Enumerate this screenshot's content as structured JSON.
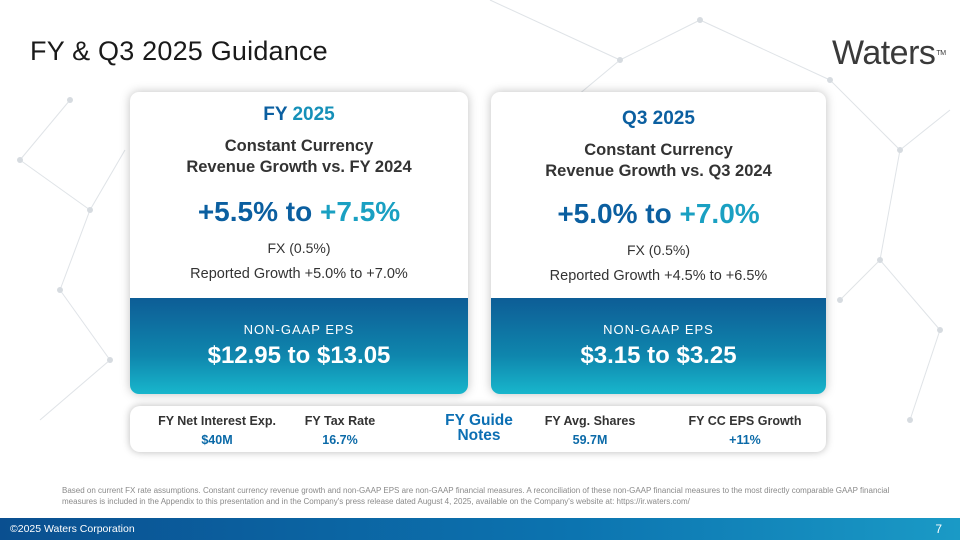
{
  "slide": {
    "title": "FY & Q3 2025 Guidance",
    "logo_text": "Waters",
    "logo_mark": "TM"
  },
  "fy_card": {
    "period_a": "FY",
    "period_b": "2025",
    "heading_line1": "Constant Currency",
    "heading_line2": "Revenue Growth vs. FY 2024",
    "range_a": "+5.5% to",
    "range_b": "+7.5%",
    "fx": "FX (0.5%)",
    "reported": "Reported Growth +5.0% to +7.0%",
    "eps_label": "NON-GAAP EPS",
    "eps_value": "$12.95 to $13.05"
  },
  "q3_card": {
    "period": "Q3 2025",
    "heading_line1": "Constant Currency",
    "heading_line2": "Revenue Growth vs. Q3 2024",
    "range_a": "+5.0% to",
    "range_b": "+7.0%",
    "fx": "FX (0.5%)",
    "reported": "Reported Growth +4.5% to +6.5%",
    "eps_label": "NON-GAAP EPS",
    "eps_value": "$3.15 to $3.25"
  },
  "notes_bar": {
    "center_line1": "FY Guide",
    "center_line2": "Notes",
    "items": [
      {
        "label": "FY Net Interest Exp.",
        "value": "$40M"
      },
      {
        "label": "FY Tax Rate",
        "value": "16.7%"
      },
      {
        "label": "FY Avg. Shares",
        "value": "59.7M"
      },
      {
        "label": "FY CC EPS Growth",
        "value": "+11%"
      }
    ]
  },
  "footnote": "Based on current FX rate assumptions. Constant currency revenue growth and non-GAAP EPS are non-GAAP financial measures. A reconciliation of these non-GAAP financial measures to the most directly comparable GAAP financial measures is included in the Appendix to this presentation and in the Company's press release dated August 4, 2025, available on the Company's website at: https://ir.waters.com/",
  "footer": {
    "copyright": "©2025 Waters Corporation",
    "page_number": "7"
  },
  "colors": {
    "primary_blue": "#0b5fa0",
    "accent_teal": "#1aa0c2",
    "footer_blue": "#0a4f90"
  }
}
